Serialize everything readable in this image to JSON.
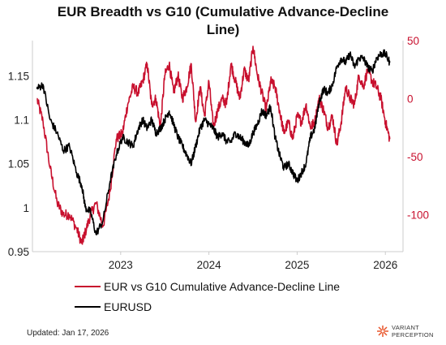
{
  "chart_data": {
    "type": "line",
    "title_lines": [
      "EUR Breadth vs G10 (Cumulative Advance-Decline",
      "Line)"
    ],
    "x_ticks": [
      "2023",
      "2024",
      "2025",
      "2026"
    ],
    "y_left": {
      "ticks": [
        "0.95",
        "1",
        "1.05",
        "1.1",
        "1.15"
      ],
      "ylim": [
        0.95,
        1.19
      ]
    },
    "y_right": {
      "ticks": [
        "50",
        "0",
        "-50",
        "-100"
      ],
      "ylim": [
        -132,
        50
      ]
    },
    "series": [
      {
        "name": "EUR vs G10 Cumulative Advance-Decline Line",
        "axis": "right",
        "color": "#c8102e",
        "x": [
          2022.05,
          2022.12,
          2022.2,
          2022.28,
          2022.35,
          2022.42,
          2022.5,
          2022.56,
          2022.6,
          2022.66,
          2022.72,
          2022.8,
          2022.88,
          2022.95,
          2023.02,
          2023.08,
          2023.14,
          2023.2,
          2023.25,
          2023.3,
          2023.35,
          2023.4,
          2023.45,
          2023.5,
          2023.55,
          2023.6,
          2023.65,
          2023.7,
          2023.75,
          2023.8,
          2023.85,
          2023.9,
          2023.95,
          2024.0,
          2024.05,
          2024.1,
          2024.15,
          2024.2,
          2024.25,
          2024.3,
          2024.35,
          2024.4,
          2024.45,
          2024.5,
          2024.55,
          2024.6,
          2024.65,
          2024.7,
          2024.75,
          2024.8,
          2024.85,
          2024.9,
          2024.95,
          2025.0,
          2025.05,
          2025.1,
          2025.15,
          2025.2,
          2025.25,
          2025.3,
          2025.35,
          2025.4,
          2025.45,
          2025.5,
          2025.55,
          2025.6,
          2025.65,
          2025.7,
          2025.75,
          2025.8,
          2025.85,
          2025.9,
          2025.95,
          2026.0,
          2026.05
        ],
        "values": [
          0,
          -20,
          -60,
          -90,
          -100,
          -100,
          -112,
          -125,
          -115,
          -100,
          -90,
          -110,
          -80,
          -35,
          -30,
          -5,
          10,
          5,
          15,
          30,
          -5,
          0,
          -25,
          20,
          30,
          5,
          20,
          0,
          10,
          30,
          -20,
          10,
          -15,
          15,
          -25,
          -10,
          0,
          -5,
          30,
          15,
          0,
          25,
          15,
          45,
          20,
          5,
          -10,
          15,
          10,
          -10,
          -30,
          -20,
          -35,
          -15,
          -20,
          -5,
          -25,
          -20,
          0,
          -10,
          -25,
          -15,
          -40,
          -20,
          10,
          0,
          -5,
          20,
          10,
          25,
          15,
          10,
          0,
          -20,
          -35
        ]
      },
      {
        "name": "EURUSD",
        "axis": "left",
        "color": "#000000",
        "x": [
          2022.05,
          2022.12,
          2022.2,
          2022.28,
          2022.35,
          2022.42,
          2022.5,
          2022.56,
          2022.6,
          2022.66,
          2022.72,
          2022.8,
          2022.88,
          2022.95,
          2023.02,
          2023.08,
          2023.14,
          2023.2,
          2023.25,
          2023.3,
          2023.35,
          2023.4,
          2023.45,
          2023.5,
          2023.55,
          2023.6,
          2023.65,
          2023.7,
          2023.75,
          2023.8,
          2023.85,
          2023.9,
          2023.95,
          2024.0,
          2024.05,
          2024.1,
          2024.15,
          2024.2,
          2024.25,
          2024.3,
          2024.35,
          2024.4,
          2024.45,
          2024.5,
          2024.55,
          2024.6,
          2024.65,
          2024.7,
          2024.75,
          2024.8,
          2024.85,
          2024.9,
          2024.95,
          2025.0,
          2025.05,
          2025.1,
          2025.15,
          2025.2,
          2025.25,
          2025.3,
          2025.35,
          2025.4,
          2025.45,
          2025.5,
          2025.55,
          2025.6,
          2025.65,
          2025.7,
          2025.75,
          2025.8,
          2025.85,
          2025.9,
          2025.95,
          2026.0,
          2026.05
        ],
        "values": [
          1.135,
          1.14,
          1.1,
          1.085,
          1.065,
          1.07,
          1.04,
          1.025,
          1.0,
          0.995,
          0.97,
          0.985,
          1.03,
          1.06,
          1.08,
          1.075,
          1.07,
          1.09,
          1.1,
          1.09,
          1.1,
          1.085,
          1.09,
          1.1,
          1.11,
          1.095,
          1.08,
          1.07,
          1.06,
          1.05,
          1.07,
          1.09,
          1.1,
          1.095,
          1.09,
          1.08,
          1.085,
          1.075,
          1.075,
          1.085,
          1.08,
          1.075,
          1.07,
          1.085,
          1.095,
          1.11,
          1.105,
          1.115,
          1.08,
          1.06,
          1.045,
          1.05,
          1.04,
          1.03,
          1.04,
          1.05,
          1.08,
          1.09,
          1.12,
          1.135,
          1.13,
          1.14,
          1.16,
          1.17,
          1.165,
          1.175,
          1.16,
          1.17,
          1.17,
          1.16,
          1.155,
          1.17,
          1.175,
          1.175,
          1.165
        ]
      }
    ],
    "legend_position": "bottom-left",
    "grid": false
  },
  "footer": {
    "updated": "Updated: Jan 17, 2026",
    "brand_line1": "VARIANT",
    "brand_line2": "PERCEPTION"
  }
}
